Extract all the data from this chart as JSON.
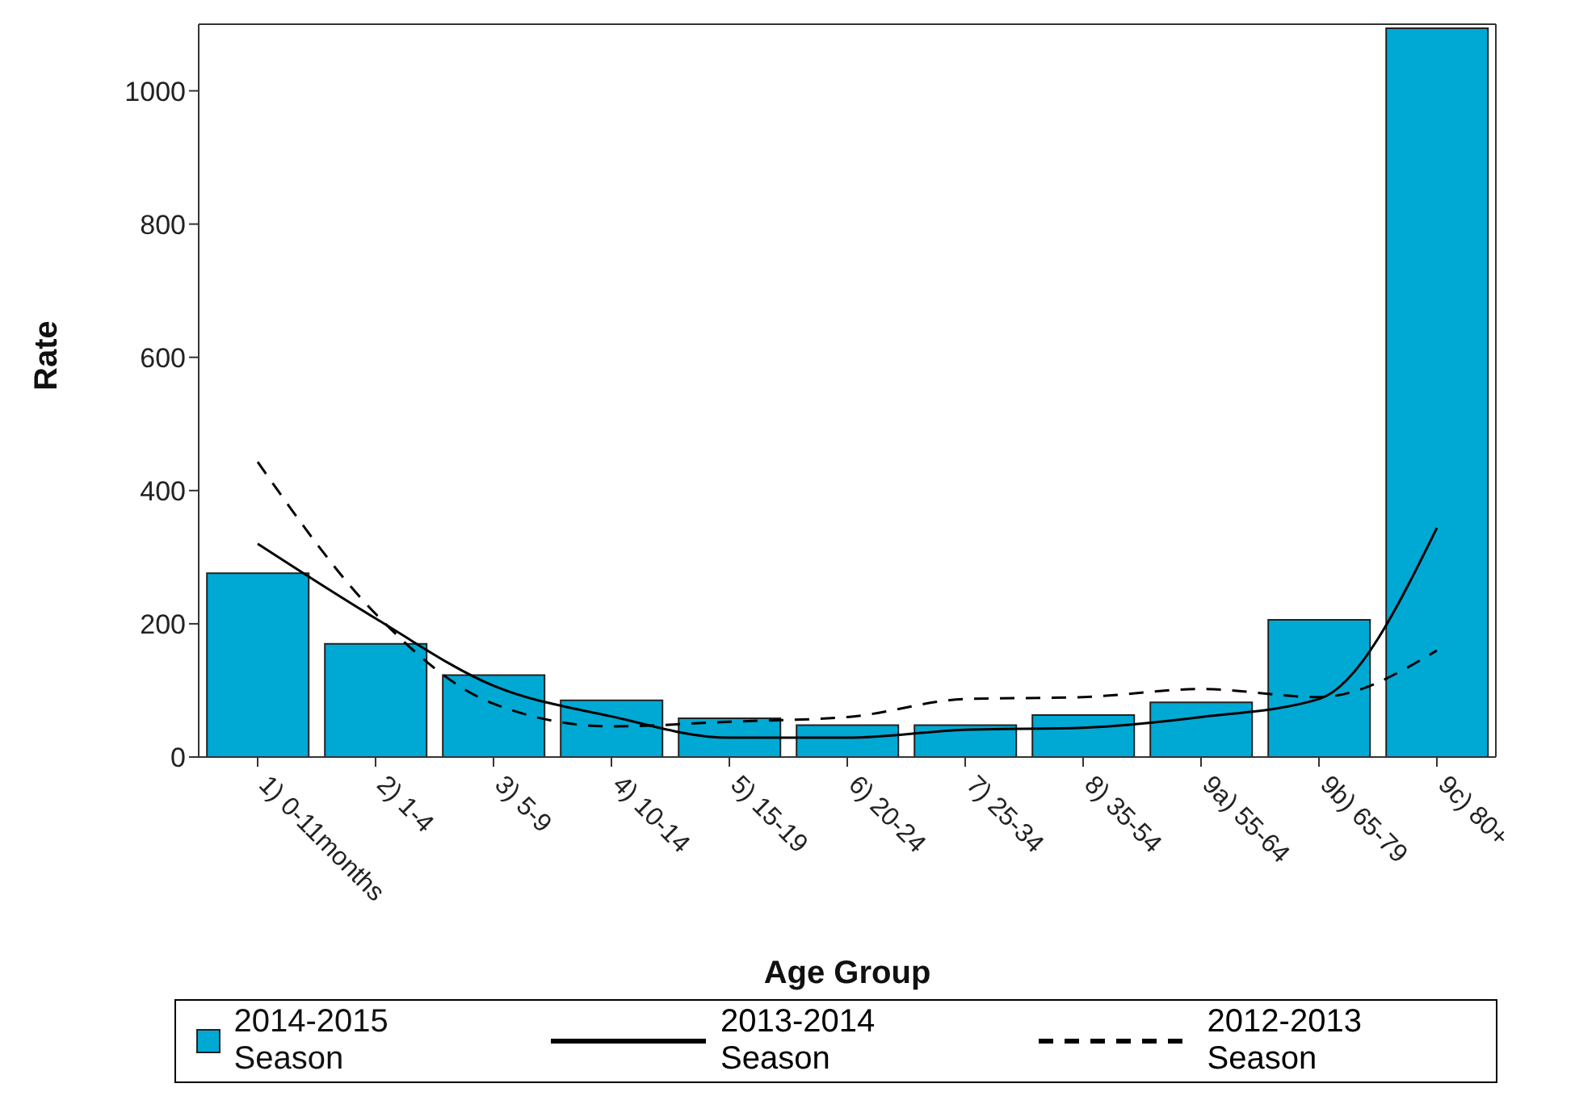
{
  "chart_data": {
    "type": "bar",
    "xlabel": "Age Group",
    "ylabel": "Rate",
    "categories": [
      "1) 0-11months",
      "2) 1-4",
      "3) 5-9",
      "4) 10-14",
      "5) 15-19",
      "6) 20-24",
      "7) 25-34",
      "8) 35-54",
      "9a) 55-64",
      "9b) 65-79",
      "9c) 80+"
    ],
    "series": [
      {
        "name": "2014-2015 Season",
        "color": "#00a9d4",
        "values": [
          276,
          170,
          123,
          85,
          58,
          48,
          48,
          63,
          82,
          206,
          1094
        ]
      },
      {
        "name": "2013-2014 Season",
        "type": "line",
        "color": "#000000",
        "line_style": "solid",
        "values": [
          320,
          208,
          107,
          61,
          29,
          29,
          41,
          44,
          60,
          87,
          344
        ]
      },
      {
        "name": "2012-2013 Season",
        "type": "line",
        "color": "#000000",
        "line_style": "dashed",
        "values": [
          443,
          215,
          80,
          46,
          53,
          60,
          87,
          90,
          102,
          90,
          160
        ]
      }
    ],
    "ylim": [
      0,
      1100
    ],
    "yticks": [
      0,
      200,
      400,
      600,
      800,
      1000
    ],
    "grid": false,
    "legend": "bottom",
    "marker": "none"
  }
}
